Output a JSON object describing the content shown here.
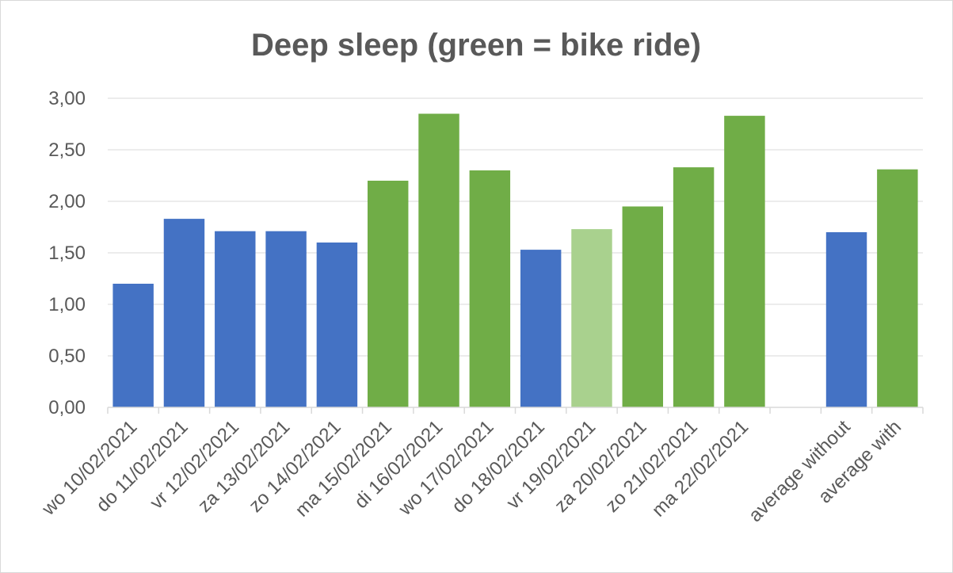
{
  "chart_data": {
    "type": "bar",
    "title": "Deep sleep (green = bike ride)",
    "xlabel": "",
    "ylabel": "",
    "ylim": [
      0,
      3
    ],
    "yticks": [
      "0,00",
      "0,50",
      "1,00",
      "1,50",
      "2,00",
      "2,50",
      "3,00"
    ],
    "grid": true,
    "legend": "none",
    "categories": [
      "wo 10/02/2021",
      "do 11/02/2021",
      "vr 12/02/2021",
      "za 13/02/2021",
      "zo 14/02/2021",
      "ma 15/02/2021",
      "di 16/02/2021",
      "wo 17/02/2021",
      "do 18/02/2021",
      "vr 19/02/2021",
      "za 20/02/2021",
      "zo 21/02/2021",
      "ma 22/02/2021",
      "",
      "average without",
      "average with"
    ],
    "values": [
      1.2,
      1.83,
      1.71,
      1.71,
      1.6,
      2.2,
      2.85,
      2.3,
      1.53,
      1.73,
      1.95,
      2.33,
      2.83,
      null,
      1.7,
      2.31
    ],
    "bar_colors": [
      "#4472c4",
      "#4472c4",
      "#4472c4",
      "#4472c4",
      "#4472c4",
      "#70ad47",
      "#70ad47",
      "#70ad47",
      "#4472c4",
      "#a9d18e",
      "#70ad47",
      "#70ad47",
      "#70ad47",
      null,
      "#4472c4",
      "#70ad47"
    ]
  }
}
